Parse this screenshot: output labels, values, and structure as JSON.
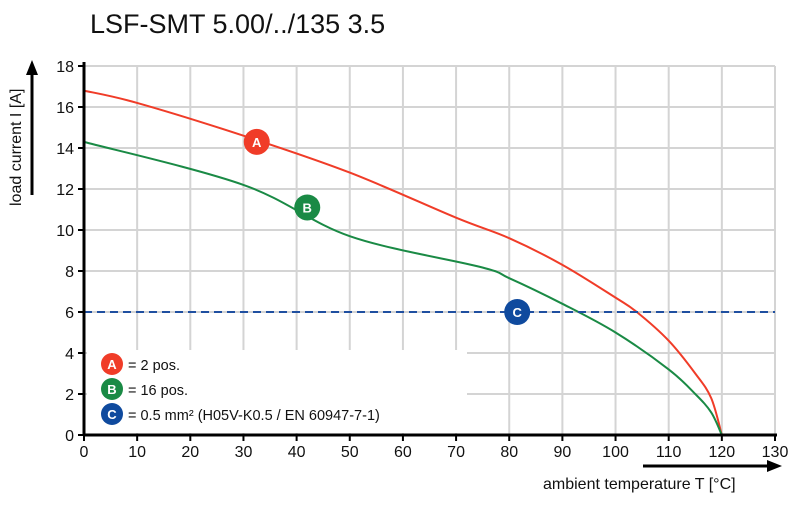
{
  "chart_data": {
    "type": "line",
    "title": "LSF-SMT 5.00/../135 3.5",
    "xlabel": "ambient temperature T [°C]",
    "ylabel": "load current I [A]",
    "xlim": [
      0,
      130
    ],
    "ylim": [
      0,
      18
    ],
    "xticks": [
      0,
      10,
      20,
      30,
      40,
      50,
      60,
      70,
      80,
      90,
      100,
      110,
      120,
      130
    ],
    "yticks": [
      0,
      2,
      4,
      6,
      8,
      10,
      12,
      14,
      16,
      18
    ],
    "grid": true,
    "series": [
      {
        "marker": "A",
        "color": "#f03c28",
        "x": [
          0,
          10,
          30,
          50,
          70,
          80,
          90,
          100,
          104,
          110,
          115,
          118,
          120
        ],
        "y": [
          16.8,
          16.2,
          14.6,
          12.8,
          10.6,
          9.6,
          8.3,
          6.7,
          6.0,
          4.6,
          3.0,
          1.8,
          0
        ]
      },
      {
        "marker": "B",
        "color": "#1a8a45",
        "x": [
          0,
          30,
          50,
          74.5,
          80,
          90,
          100,
          110,
          115,
          118,
          120
        ],
        "y": [
          14.3,
          12.2,
          9.7,
          8.2,
          7.65,
          6.4,
          5.0,
          3.2,
          2.0,
          1.1,
          0
        ]
      },
      {
        "marker": "C",
        "color": "#1f4fa0",
        "style": "dashed",
        "x": [
          0,
          130
        ],
        "y": [
          6,
          6
        ]
      }
    ],
    "markers": [
      {
        "label": "A",
        "x": 32.5,
        "y": 14.3,
        "color": "#f03c28"
      },
      {
        "label": "B",
        "x": 42,
        "y": 11.1,
        "color": "#1a8a45"
      },
      {
        "label": "C",
        "x": 81.5,
        "y": 6,
        "color": "#0f4a9e"
      }
    ],
    "legend": {
      "placement": "bottom-left",
      "entries": [
        {
          "label": "A",
          "text": "= 2 pos.",
          "color": "#f03c28"
        },
        {
          "label": "B",
          "text": "= 16 pos.",
          "color": "#1a8a45"
        },
        {
          "label": "C",
          "text": "= 0.5 mm² (H05V-K0.5 / EN 60947-7-1)",
          "color": "#0f4a9e"
        }
      ]
    }
  }
}
